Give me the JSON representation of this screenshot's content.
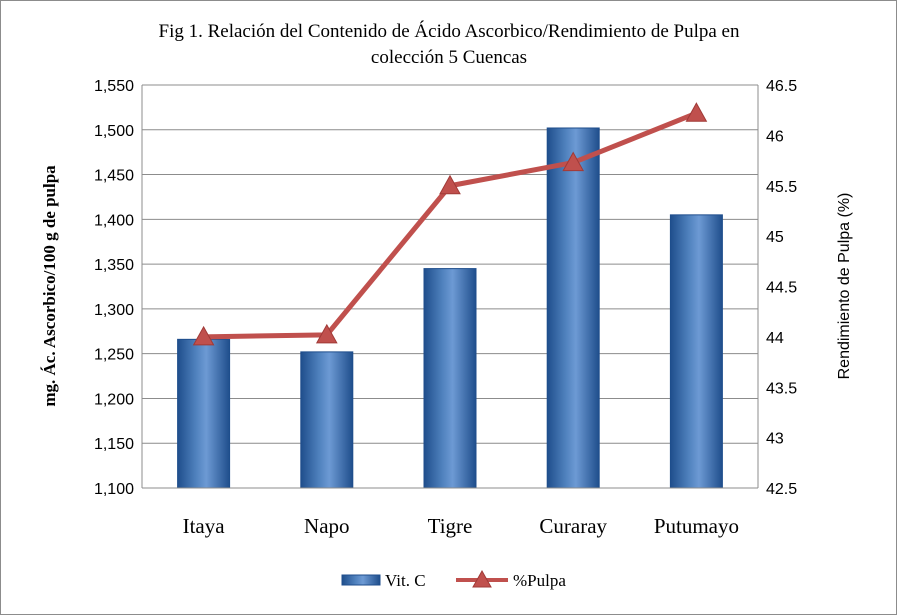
{
  "chart_data": {
    "type": "bar+line",
    "title_lines": [
      "Fig 1.  Relación del Contenido de Ácido Ascorbico/Rendimiento de Pulpa en",
      "colección 5 Cuencas"
    ],
    "categories": [
      "Itaya",
      "Napo",
      "Tigre",
      "Curaray",
      "Putumayo"
    ],
    "series": [
      {
        "name": "Vit. C",
        "kind": "bar",
        "axis": "left",
        "values": [
          1266,
          1252,
          1345,
          1502,
          1405
        ]
      },
      {
        "name": "%Pulpa",
        "kind": "line",
        "axis": "right",
        "values": [
          44.0,
          44.02,
          45.5,
          45.73,
          46.22
        ]
      }
    ],
    "ylabel_left": "mg. Ác. Ascorbico/100 g de pulpa",
    "ylabel_right": "Rendimiento de Pulpa (%)",
    "ylim_left": [
      1100,
      1550
    ],
    "ylim_right": [
      42.5,
      46.5
    ],
    "yticks_left": [
      "1,100",
      "1,150",
      "1,200",
      "1,250",
      "1,300",
      "1,350",
      "1,400",
      "1,450",
      "1,500",
      "1,550"
    ],
    "yticks_right": [
      "42.5",
      "43",
      "43.5",
      "44",
      "44.5",
      "45",
      "45.5",
      "46",
      "46.5"
    ],
    "grid": true,
    "legend_position": "bottom",
    "colors": {
      "bar": "#4f81bd",
      "bar_dark": "#1f4e8c",
      "line": "#c0504d",
      "grid": "#8c8c8c"
    }
  }
}
